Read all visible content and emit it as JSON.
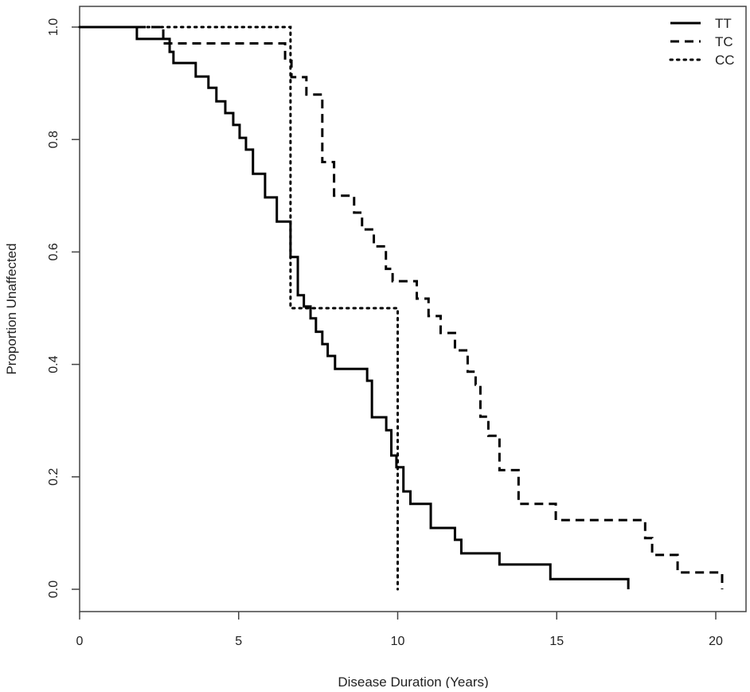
{
  "chart_data": {
    "type": "line",
    "step": true,
    "title": "",
    "xlabel": "Disease Duration (Years)",
    "ylabel": "Proportion Unaffected",
    "xlim": [
      0,
      21
    ],
    "ylim": [
      0,
      1.05
    ],
    "xticks": [
      "0",
      "5",
      "10",
      "15",
      "20"
    ],
    "yticks": [
      "0.0",
      "0.2",
      "0.4",
      "0.6",
      "0.8",
      "1.0"
    ],
    "grid": false,
    "legend": "top-right",
    "series": [
      {
        "name": "TT",
        "style": "solid",
        "x": [
          0,
          1.8,
          2.83,
          2.95,
          3.65,
          4.05,
          4.3,
          4.58,
          4.83,
          5.03,
          5.23,
          5.45,
          5.83,
          6.2,
          6.63,
          6.86,
          7.05,
          7.26,
          7.43,
          7.63,
          7.8,
          8.03,
          9.04,
          9.19,
          9.64,
          9.8,
          9.96,
          10.18,
          10.4,
          11.04,
          11.8,
          12.0,
          13.2,
          14.8,
          17.25
        ],
        "y": [
          1.0,
          0.979,
          0.956,
          0.936,
          0.912,
          0.892,
          0.868,
          0.847,
          0.826,
          0.803,
          0.782,
          0.739,
          0.697,
          0.654,
          0.591,
          0.523,
          0.503,
          0.482,
          0.458,
          0.436,
          0.415,
          0.392,
          0.371,
          0.306,
          0.283,
          0.238,
          0.217,
          0.174,
          0.152,
          0.109,
          0.088,
          0.064,
          0.044,
          0.018,
          0.0
        ]
      },
      {
        "name": "TC",
        "style": "dashed",
        "x": [
          0,
          2.63,
          6.46,
          6.66,
          7.13,
          7.63,
          8.0,
          8.63,
          8.88,
          9.25,
          9.63,
          9.84,
          10.6,
          10.97,
          11.35,
          11.8,
          12.2,
          12.45,
          12.6,
          12.85,
          13.2,
          13.8,
          14.97,
          17.78,
          18.0,
          18.8,
          20.2
        ],
        "y": [
          1.0,
          0.971,
          0.94,
          0.911,
          0.88,
          0.76,
          0.7,
          0.67,
          0.64,
          0.61,
          0.57,
          0.548,
          0.517,
          0.486,
          0.456,
          0.425,
          0.387,
          0.364,
          0.307,
          0.273,
          0.212,
          0.152,
          0.123,
          0.091,
          0.061,
          0.03,
          0.0
        ]
      },
      {
        "name": "CC",
        "style": "dotted",
        "x": [
          0,
          6.63,
          10.0
        ],
        "y": [
          1.0,
          0.5,
          0.0
        ]
      }
    ]
  }
}
